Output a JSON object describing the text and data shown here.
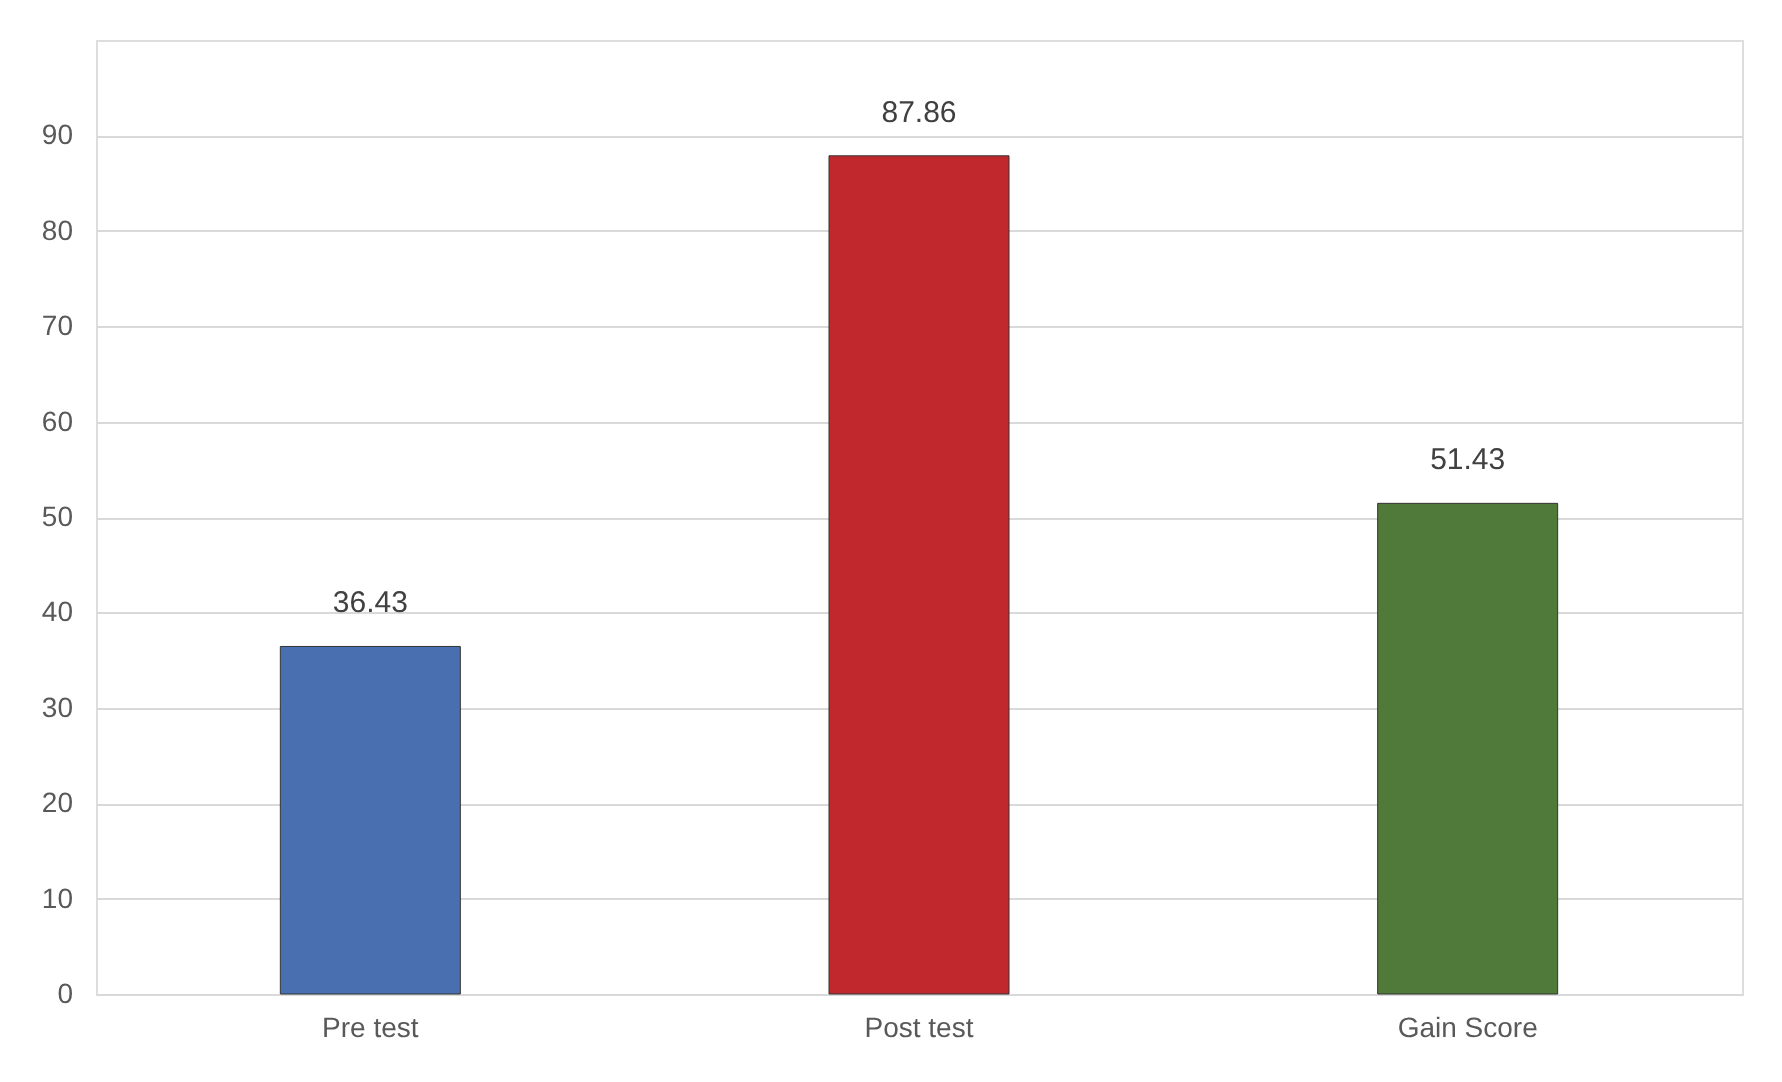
{
  "chart_data": {
    "type": "bar",
    "categories": [
      "Pre test",
      "Post test",
      "Gain Score"
    ],
    "values": [
      36.43,
      87.86,
      51.43
    ],
    "colors": [
      "#4a6fb0",
      "#c0282e",
      "#4f7a3a"
    ],
    "ylim": [
      0,
      100
    ],
    "yticks": [
      0,
      10,
      20,
      30,
      40,
      50,
      60,
      70,
      80,
      90
    ],
    "grid": "y",
    "data_labels": true
  }
}
